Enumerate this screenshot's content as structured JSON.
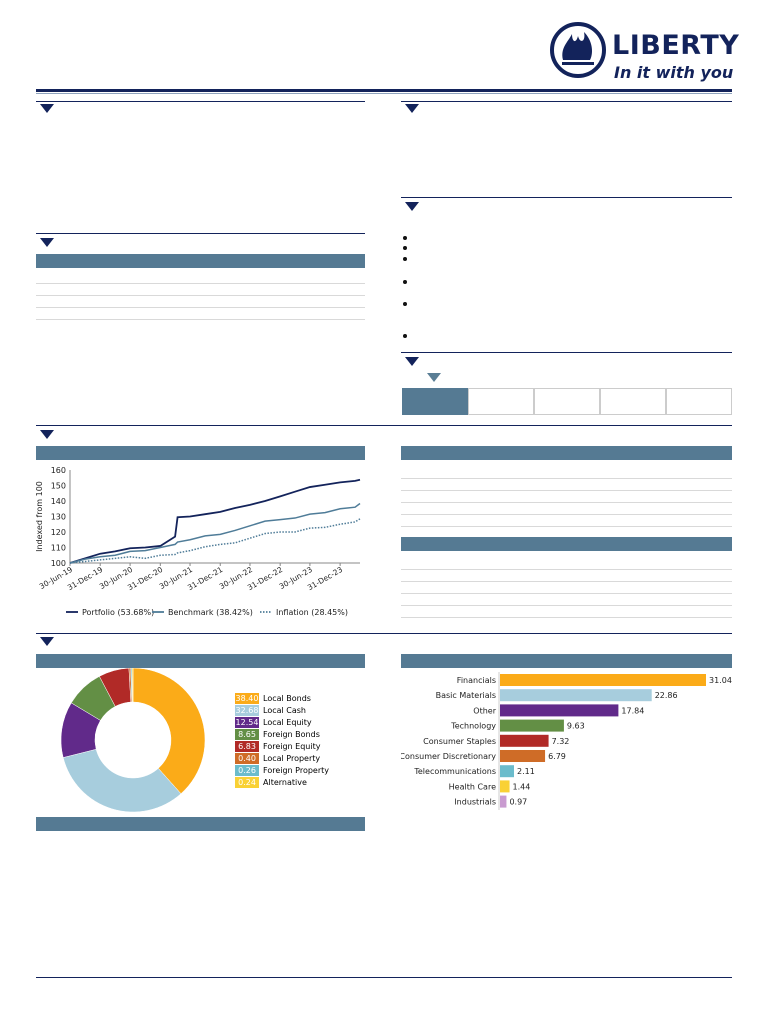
{
  "brand": {
    "name": "LIBERTY",
    "tagline": "In it with you",
    "color": "#13235b",
    "logo_icon": "flame-in-circle-icon"
  },
  "colors": {
    "navy": "#13235b",
    "section_bar": "#557a93"
  },
  "performance_chart": {
    "type": "line",
    "ylabel": "Indexed from 100",
    "ylim": [
      100,
      160
    ],
    "yticks": [
      100,
      110,
      120,
      130,
      140,
      150,
      160
    ],
    "xticks": [
      "30-Jun-19",
      "31-Dec-19",
      "30-Jun-20",
      "31-Dec-20",
      "30-Jun-21",
      "31-Dec-21",
      "30-Jun-22",
      "31-Dec-22",
      "30-Jun-23",
      "31-Dec-23"
    ],
    "x": [
      "2019-06-30",
      "2019-09-30",
      "2019-12-31",
      "2020-03-31",
      "2020-06-30",
      "2020-09-30",
      "2020-12-31",
      "2021-03-31",
      "2021-04-15",
      "2021-06-30",
      "2021-09-30",
      "2021-12-31",
      "2022-03-31",
      "2022-06-30",
      "2022-09-30",
      "2022-12-31",
      "2023-03-31",
      "2023-06-30",
      "2023-09-30",
      "2023-12-31",
      "2024-03-31",
      "2024-04-30"
    ],
    "series": [
      {
        "name": "Portfolio (53.68%)",
        "color": "#13235b",
        "style": "solid",
        "values": [
          100,
          103,
          106,
          107.5,
          109.5,
          110,
          111,
          117,
          129.5,
          130,
          131.5,
          133,
          135.5,
          137.5,
          140,
          143,
          146,
          149,
          150.5,
          152,
          153,
          153.7
        ]
      },
      {
        "name": "Benchmark (38.42%)",
        "color": "#4f7c98",
        "style": "solid",
        "values": [
          100,
          102.5,
          104,
          105,
          107.5,
          108,
          110,
          112,
          113.5,
          115,
          117.5,
          118.5,
          121,
          124,
          127,
          128,
          129,
          131.5,
          132.5,
          135,
          136,
          138.4
        ]
      },
      {
        "name": "Inflation (28.45%)",
        "color": "#4f7c98",
        "style": "dotted",
        "values": [
          100,
          101,
          102,
          103,
          104,
          103,
          105,
          105.5,
          106.5,
          108,
          110.5,
          112,
          113,
          116,
          119,
          120,
          120,
          122.5,
          123,
          125,
          126.5,
          128.5
        ]
      }
    ],
    "legend": "bottom"
  },
  "asset_allocation": {
    "type": "pie",
    "slices": [
      {
        "label": "Local Bonds",
        "value": "38.40",
        "color": "#fbab18"
      },
      {
        "label": "Local Cash",
        "value": "32.68",
        "color": "#a7cddd"
      },
      {
        "label": "Local Equity",
        "value": "12.54",
        "color": "#612a8a"
      },
      {
        "label": "Foreign Bonds",
        "value": "8.65",
        "color": "#638f45"
      },
      {
        "label": "Foreign Equity",
        "value": "6.83",
        "color": "#b12a27"
      },
      {
        "label": "Local Property",
        "value": "0.40",
        "color": "#cf6c27"
      },
      {
        "label": "Foreign Property",
        "value": "0.26",
        "color": "#6bbccc"
      },
      {
        "label": "Alternative",
        "value": "0.24",
        "color": "#f9d135"
      }
    ],
    "legend": "right"
  },
  "sector_allocation": {
    "type": "bar",
    "orientation": "horizontal",
    "categories": [
      "Financials",
      "Basic Materials",
      "Other",
      "Technology",
      "Consumer Staples",
      "Consumer Discretionary",
      "Telecommunications",
      "Health Care",
      "Industrials"
    ],
    "values": [
      31.04,
      22.86,
      17.84,
      9.63,
      7.32,
      6.79,
      2.11,
      1.44,
      0.97
    ],
    "labels": [
      "31.04",
      "22.86",
      "17.84",
      "9.63",
      "7.32",
      "6.79",
      "2.11",
      "1.44",
      "0.97"
    ],
    "colors": [
      "#fbab18",
      "#a7cddd",
      "#612a8a",
      "#638f45",
      "#b12a27",
      "#cf6c27",
      "#6bbccc",
      "#f9d135",
      "#c99bd0"
    ]
  }
}
